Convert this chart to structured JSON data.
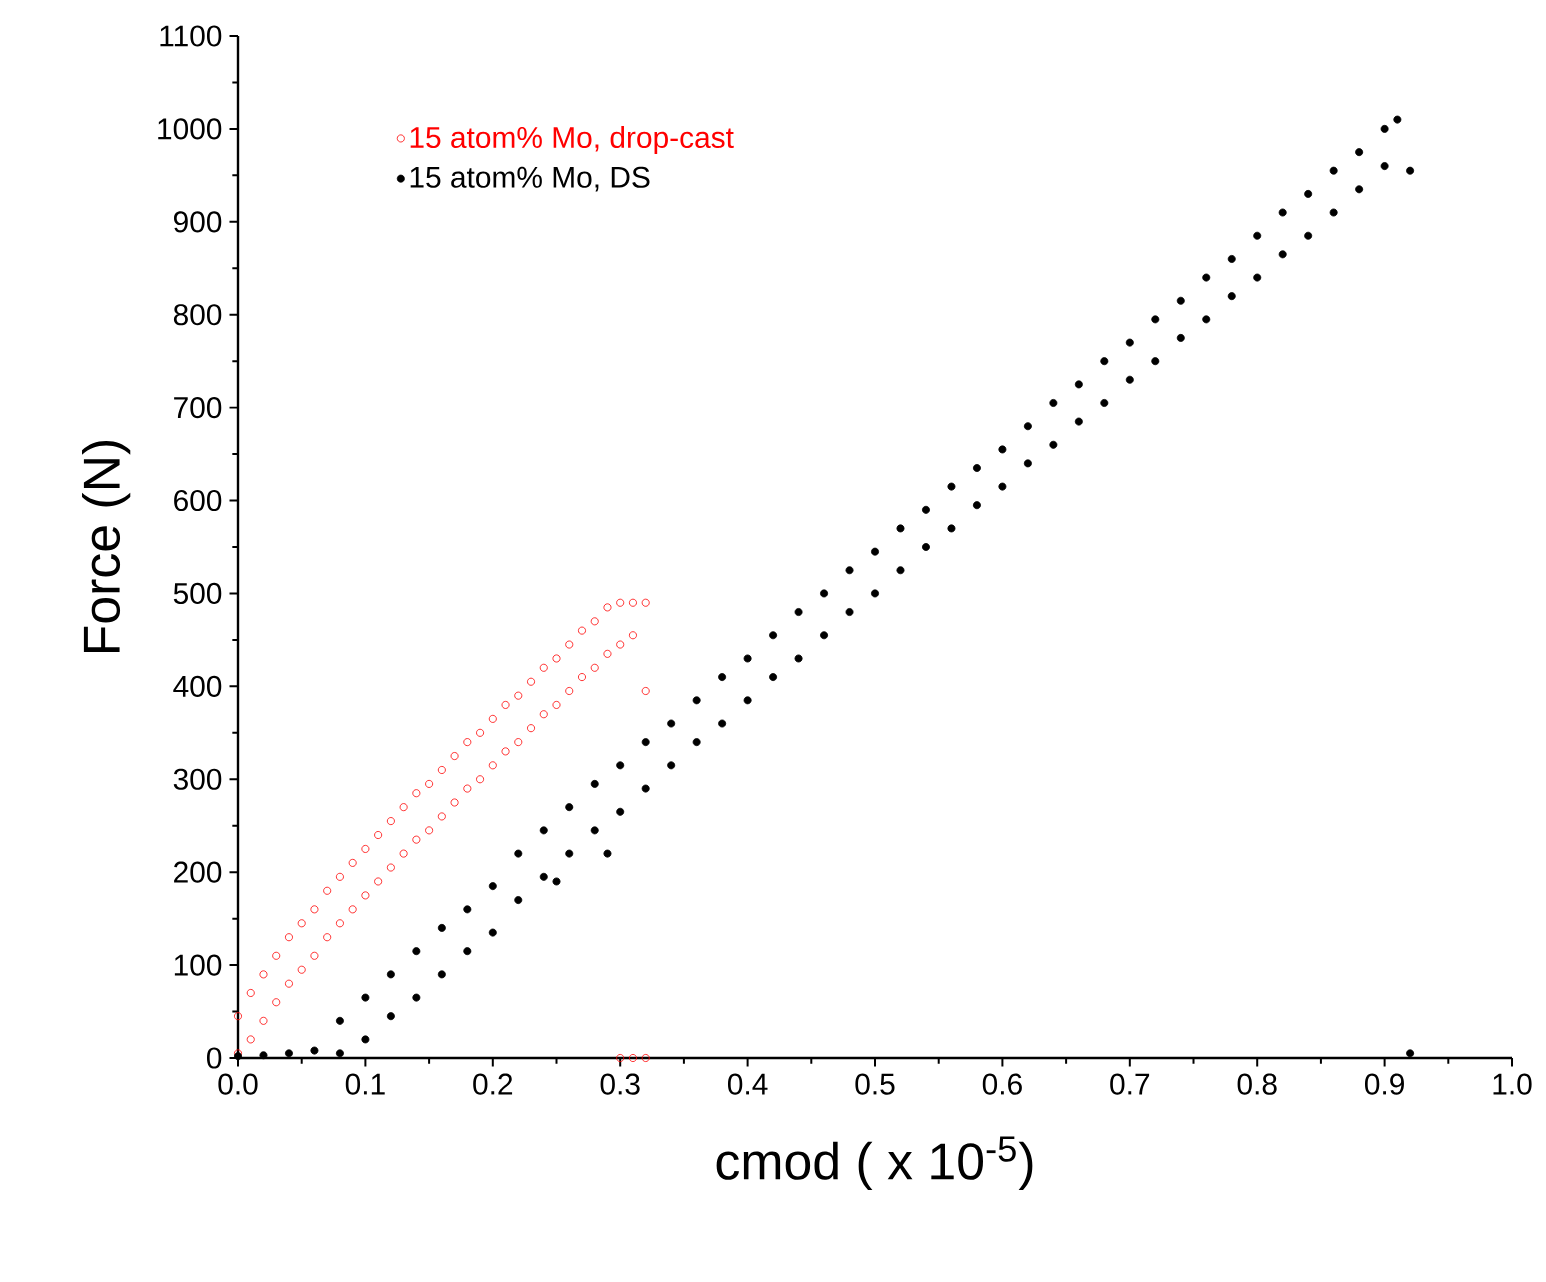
{
  "chart_data": {
    "type": "scatter",
    "xlabel": "cmod ( x 10$^{-5}$)",
    "ylabel": "Force (N)",
    "xlim": [
      0,
      1.0
    ],
    "ylim": [
      0,
      1100
    ],
    "xticks": [
      {
        "value": 0,
        "label": "0.0"
      },
      0.1,
      0.2,
      0.3,
      0.4,
      0.5,
      0.6,
      0.7,
      0.8,
      0.9,
      {
        "value": 1.0,
        "label": "1.0"
      }
    ],
    "yticks": [
      0,
      100,
      200,
      300,
      400,
      500,
      600,
      700,
      800,
      900,
      1000,
      1100
    ],
    "marker": "circle",
    "legend": "top left",
    "grid": false,
    "series": [
      {
        "name": "15 atom% Mo, drop-cast",
        "color": "#ff0000",
        "x": [
          0,
          0,
          0.01,
          0.01,
          0.02,
          0.02,
          0.03,
          0.03,
          0.04,
          0.04,
          0.05,
          0.05,
          0.06,
          0.06,
          0.07,
          0.07,
          0.08,
          0.08,
          0.09,
          0.09,
          0.1,
          0.1,
          0.11,
          0.11,
          0.12,
          0.12,
          0.13,
          0.13,
          0.14,
          0.14,
          0.15,
          0.15,
          0.16,
          0.16,
          0.17,
          0.17,
          0.18,
          0.18,
          0.19,
          0.19,
          0.2,
          0.2,
          0.21,
          0.21,
          0.22,
          0.22,
          0.23,
          0.23,
          0.24,
          0.24,
          0.25,
          0.25,
          0.26,
          0.26,
          0.27,
          0.27,
          0.28,
          0.28,
          0.29,
          0.29,
          0.3,
          0.3,
          0.31,
          0.31,
          0.32,
          0.32,
          0.3,
          0.31,
          0.32
        ],
        "values": [
          5,
          45,
          20,
          70,
          40,
          90,
          60,
          110,
          80,
          130,
          95,
          145,
          110,
          160,
          130,
          180,
          145,
          195,
          160,
          210,
          175,
          225,
          190,
          240,
          205,
          255,
          220,
          270,
          235,
          285,
          245,
          295,
          260,
          310,
          275,
          325,
          290,
          340,
          300,
          350,
          315,
          365,
          330,
          380,
          340,
          390,
          355,
          405,
          370,
          420,
          380,
          430,
          395,
          445,
          410,
          460,
          420,
          470,
          435,
          485,
          445,
          490,
          455,
          490,
          490,
          395,
          0,
          0,
          0
        ]
      },
      {
        "name": "15 atom% Mo, DS",
        "color": "#000000",
        "x": [
          0,
          0.02,
          0.04,
          0.06,
          0.08,
          0.08,
          0.1,
          0.1,
          0.12,
          0.12,
          0.14,
          0.14,
          0.16,
          0.16,
          0.18,
          0.18,
          0.2,
          0.2,
          0.22,
          0.22,
          0.24,
          0.24,
          0.26,
          0.26,
          0.28,
          0.28,
          0.3,
          0.3,
          0.32,
          0.32,
          0.34,
          0.34,
          0.36,
          0.36,
          0.38,
          0.38,
          0.4,
          0.4,
          0.42,
          0.42,
          0.44,
          0.44,
          0.46,
          0.46,
          0.48,
          0.48,
          0.5,
          0.5,
          0.52,
          0.52,
          0.54,
          0.54,
          0.56,
          0.56,
          0.58,
          0.58,
          0.6,
          0.6,
          0.62,
          0.62,
          0.64,
          0.64,
          0.66,
          0.66,
          0.68,
          0.68,
          0.7,
          0.7,
          0.72,
          0.72,
          0.74,
          0.74,
          0.76,
          0.76,
          0.78,
          0.78,
          0.8,
          0.8,
          0.82,
          0.82,
          0.84,
          0.84,
          0.86,
          0.86,
          0.88,
          0.88,
          0.9,
          0.9,
          0.91,
          0.92,
          0.92,
          0.25,
          0.29
        ],
        "values": [
          2,
          3,
          5,
          8,
          5,
          40,
          20,
          65,
          45,
          90,
          65,
          115,
          90,
          140,
          115,
          160,
          135,
          185,
          170,
          220,
          195,
          245,
          220,
          270,
          245,
          295,
          265,
          315,
          290,
          340,
          315,
          360,
          340,
          385,
          360,
          410,
          385,
          430,
          410,
          455,
          430,
          480,
          455,
          500,
          480,
          525,
          500,
          545,
          525,
          570,
          550,
          590,
          570,
          615,
          595,
          635,
          615,
          655,
          640,
          680,
          660,
          705,
          685,
          725,
          705,
          750,
          730,
          770,
          750,
          795,
          775,
          815,
          795,
          840,
          820,
          860,
          840,
          885,
          865,
          910,
          885,
          930,
          910,
          955,
          935,
          975,
          960,
          1000,
          1010,
          955,
          5,
          190,
          220
        ]
      }
    ]
  }
}
